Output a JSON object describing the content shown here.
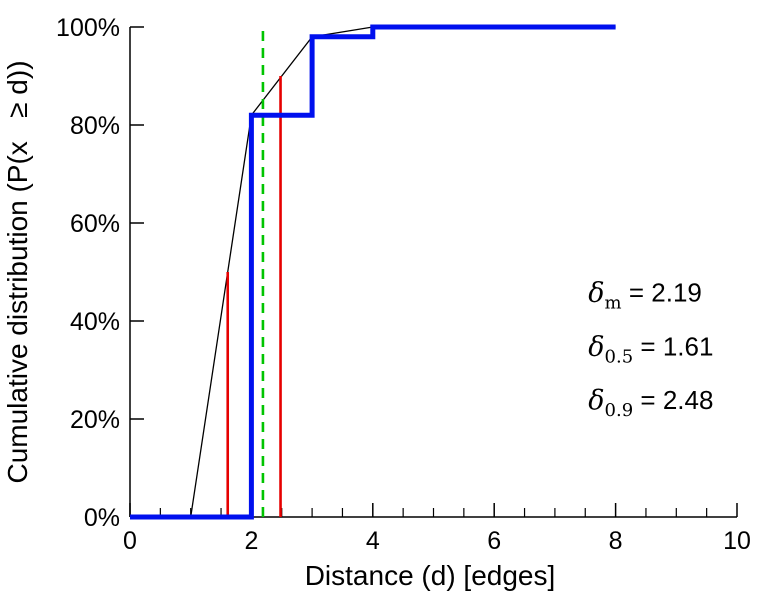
{
  "chart_data": {
    "type": "line",
    "title": "",
    "xlabel": "Distance (d) [edges]",
    "ylabel": "Cumulative distribution (P(x   ≥ d))",
    "xlim": [
      0,
      10
    ],
    "ylim": [
      0,
      100
    ],
    "grid": false,
    "legend": "none",
    "x_ticks": [
      {
        "v": 0,
        "label": "0"
      },
      {
        "v": 2,
        "label": "2"
      },
      {
        "v": 4,
        "label": "4"
      },
      {
        "v": 6,
        "label": "6"
      },
      {
        "v": 8,
        "label": "8"
      },
      {
        "v": 10,
        "label": "10"
      }
    ],
    "x_minor_tick_step": 0.5,
    "y_ticks": [
      {
        "v": 0,
        "label": "0%"
      },
      {
        "v": 20,
        "label": "20%"
      },
      {
        "v": 40,
        "label": "40%"
      },
      {
        "v": 60,
        "label": "60%"
      },
      {
        "v": 80,
        "label": "80%"
      },
      {
        "v": 100,
        "label": "100%"
      }
    ],
    "series": [
      {
        "name": "linear-interpolation-line",
        "color": "#000000",
        "width": 1.3,
        "dash": "none",
        "points": [
          [
            1,
            0
          ],
          [
            2,
            82
          ],
          [
            3,
            98
          ],
          [
            4,
            100
          ],
          [
            8,
            100
          ]
        ]
      },
      {
        "name": "median-marker-line",
        "color": "#e60000",
        "width": 2.6,
        "dash": "none",
        "points": [
          [
            1.61,
            0
          ],
          [
            1.61,
            50
          ]
        ]
      },
      {
        "name": "p90-marker-line",
        "color": "#e60000",
        "width": 2.6,
        "dash": "none",
        "points": [
          [
            2.48,
            0
          ],
          [
            2.48,
            90
          ]
        ]
      },
      {
        "name": "mean-marker-line",
        "color": "#00c400",
        "width": 2.6,
        "dash": "10 7",
        "points": [
          [
            2.19,
            0
          ],
          [
            2.19,
            100
          ]
        ]
      },
      {
        "name": "empirical-cdf-step",
        "color": "#0010ee",
        "width": 5,
        "dash": "none",
        "points": [
          [
            0,
            0
          ],
          [
            2,
            0
          ],
          [
            2,
            82
          ],
          [
            3,
            82
          ],
          [
            3,
            98
          ],
          [
            4,
            98
          ],
          [
            4,
            100
          ],
          [
            8,
            100
          ]
        ]
      }
    ],
    "annotations": [
      {
        "symbol": "δ",
        "subscript": "m",
        "rest": " = 2.19",
        "x": 7.55,
        "y": 44
      },
      {
        "symbol": "δ",
        "subscript": "0.5",
        "rest": " = 1.61",
        "x": 7.55,
        "y": 33
      },
      {
        "symbol": "δ",
        "subscript": "0.9",
        "rest": " = 2.48",
        "x": 7.55,
        "y": 22
      }
    ]
  }
}
